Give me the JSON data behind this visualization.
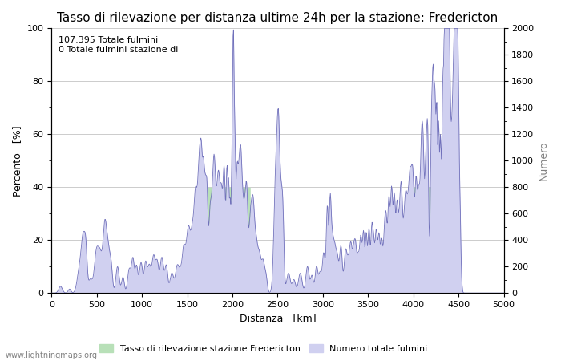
{
  "title": "Tasso di rilevazione per distanza ultime 24h per la stazione: Fredericton",
  "xlabel": "Distanza   [km]",
  "ylabel_left": "Percento   [%]",
  "ylabel_right": "Numero",
  "annotation_line1": "107.395 Totale fulmini",
  "annotation_line2": "0 Totale fulmini stazione di",
  "xlim": [
    0,
    5000
  ],
  "ylim_left": [
    0,
    100
  ],
  "ylim_right": [
    0,
    2000
  ],
  "xticks": [
    0,
    500,
    1000,
    1500,
    2000,
    2500,
    3000,
    3500,
    4000,
    4500,
    5000
  ],
  "yticks_left": [
    0,
    20,
    40,
    60,
    80,
    100
  ],
  "yticks_right": [
    0,
    200,
    400,
    600,
    800,
    1000,
    1200,
    1400,
    1600,
    1800,
    2000
  ],
  "legend_label_green": "Tasso di rilevazione stazione Fredericton",
  "legend_label_blue": "Numero totale fulmini",
  "watermark": "www.lightningmaps.org",
  "fill_green_color": "#b8e0b8",
  "fill_blue_color": "#d0d0f0",
  "line_blue_color": "#7070bb",
  "background_color": "#ffffff",
  "grid_color": "#cccccc",
  "title_fontsize": 11,
  "axis_fontsize": 9,
  "tick_fontsize": 8
}
